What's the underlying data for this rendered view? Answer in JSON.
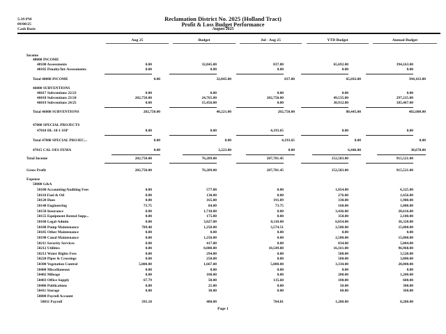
{
  "header": {
    "time": "5:39 PM",
    "date": "09/08/25",
    "basis": "Cash Basis",
    "title": "Reclamation District No. 2025 (Holland Tract)",
    "subtitle": "Profit & Loss Budget Performance",
    "period": "August 2025"
  },
  "columns": [
    "Aug 25",
    "Budget",
    "Jul - Aug 25",
    "YTD Budget",
    "Annual Budget"
  ],
  "rows": [
    {
      "label": "Income",
      "level": 0,
      "kind": "heading"
    },
    {
      "label": "48000 INCOME",
      "level": 1,
      "kind": "heading"
    },
    {
      "label": "48100 Assessments",
      "level": 2,
      "kind": "detail",
      "values": [
        "0.00",
        "32,845.00",
        "837.80",
        "65,692.00",
        "394,163.00"
      ]
    },
    {
      "label": "48105 Penalty/Int-Assessments",
      "level": 2,
      "kind": "detail",
      "values": [
        "0.00",
        "0.00",
        "0.00",
        "0.00",
        "0.00"
      ],
      "underline": true
    },
    {
      "label": "Total 48000 INCOME",
      "level": 1,
      "kind": "subtotal",
      "values": [
        "0.00",
        "32,845.00",
        "837.80",
        "65,692.00",
        "394,163.00"
      ]
    },
    {
      "label": "46000 SUBVENTIONS",
      "level": 1,
      "kind": "heading"
    },
    {
      "label": "46017 Subventions 22/23",
      "level": 2,
      "kind": "detail",
      "values": [
        "0.00",
        "0.00",
        "0.00",
        "0.00",
        "0.00"
      ]
    },
    {
      "label": "46018 Subventions 23/24",
      "level": 2,
      "kind": "detail",
      "values": [
        "202,750.00",
        "24,765.00",
        "202,750.00",
        "49,535.00",
        "297,215.00"
      ]
    },
    {
      "label": "46019 Subventions 24/25",
      "level": 2,
      "kind": "detail",
      "values": [
        "0.00",
        "15,456.00",
        "0.00",
        "30,912.00",
        "185,467.00"
      ],
      "underline": true
    },
    {
      "label": "Total 46000 SUBVENTIONS",
      "level": 1,
      "kind": "subtotal",
      "values": [
        "202,750.00",
        "40,221.00",
        "202,750.00",
        "80,445.00",
        "482,680.00"
      ]
    },
    {
      "label": "47000 SPECIAL PROJECTS",
      "level": 1,
      "kind": "heading"
    },
    {
      "label": "47010 DL-18-1 SSP",
      "level": 2,
      "kind": "detail",
      "values": [
        "0.00",
        "0.00",
        "4,193.65",
        "0.00",
        "0.00"
      ],
      "underline": true
    },
    {
      "label": "Total 47000 SPECIAL PROJEC...",
      "level": 1,
      "kind": "subtotal",
      "values": [
        "0.00",
        "0.00",
        "4,193.65",
        "0.00",
        "0.00"
      ]
    },
    {
      "label": "47015 CAL OES FEMA",
      "level": 1,
      "kind": "subtotal",
      "values": [
        "0.00",
        "3,223.00",
        "0.00",
        "6,446.00",
        "38,678.00"
      ],
      "underline": true
    },
    {
      "label": "Total Income",
      "level": 0,
      "kind": "total",
      "values": [
        "202,750.00",
        "76,289.00",
        "207,781.45",
        "152,583.00",
        "915,521.00"
      ],
      "underline": true
    },
    {
      "label": "Gross Profit",
      "level": 0,
      "kind": "total",
      "values": [
        "202,750.00",
        "76,289.00",
        "207,781.45",
        "152,583.00",
        "915,521.00"
      ]
    },
    {
      "label": "Expense",
      "level": 0,
      "kind": "heading"
    },
    {
      "label": "50000 G&A",
      "level": 1,
      "kind": "heading"
    },
    {
      "label": "50100 Accounting/Auditing Fees",
      "level": 2,
      "kind": "detail",
      "values": [
        "0.00",
        "577.00",
        "0.00",
        "1,054.00",
        "6,325.00"
      ]
    },
    {
      "label": "50110 Fuel & Oil",
      "level": 2,
      "kind": "detail",
      "values": [
        "0.00",
        "138.00",
        "0.00",
        "276.00",
        "1,656.00"
      ]
    },
    {
      "label": "50120 Dues",
      "level": 2,
      "kind": "detail",
      "values": [
        "0.00",
        "165.00",
        "191.89",
        "330.00",
        "1,980.00"
      ]
    },
    {
      "label": "50140 Engineering",
      "level": 2,
      "kind": "detail",
      "values": [
        "73.75",
        "84.00",
        "73.75",
        "168.00",
        "1,008.00"
      ]
    },
    {
      "label": "50150 Insurance",
      "level": 2,
      "kind": "detail",
      "values": [
        "0.00",
        "1,718.00",
        "0.00",
        "3,436.00",
        "20,616.00"
      ]
    },
    {
      "label": "50155 Equipment Rental Supp...",
      "level": 2,
      "kind": "detail",
      "values": [
        "0.00",
        "175.00",
        "0.00",
        "350.00",
        "2,100.00"
      ]
    },
    {
      "label": "50160 Legal-Admin",
      "level": 2,
      "kind": "detail",
      "values": [
        "0.00",
        "3,027.00",
        "8,110.00",
        "6,054.00",
        "36,320.00"
      ]
    },
    {
      "label": "50180 Pump Maintenance",
      "level": 2,
      "kind": "detail",
      "values": [
        "789.48",
        "1,250.00",
        "3,574.51",
        "2,500.00",
        "15,000.00"
      ]
    },
    {
      "label": "50185 Other Maintenance",
      "level": 2,
      "kind": "detail",
      "values": [
        "0.00",
        "0.00",
        "0.00",
        "0.00",
        "0.00"
      ]
    },
    {
      "label": "50190 Canal Maintenance",
      "level": 2,
      "kind": "detail",
      "values": [
        "0.00",
        "1,250.00",
        "0.00",
        "2,500.00",
        "15,000.00"
      ]
    },
    {
      "label": "50211 Security Services",
      "level": 2,
      "kind": "detail",
      "values": [
        "0.00",
        "417.00",
        "0.00",
        "834.00",
        "5,004.00"
      ]
    },
    {
      "label": "50212 Utilities",
      "level": 2,
      "kind": "detail",
      "values": [
        "0.00",
        "8,080.00",
        "10,549.88",
        "16,161.00",
        "96,968.00"
      ]
    },
    {
      "label": "50213 Water Rights Fees",
      "level": 2,
      "kind": "detail",
      "values": [
        "0.00",
        "294.00",
        "0.00",
        "588.00",
        "3,528.00"
      ]
    },
    {
      "label": "50220 Pipes & Crossings",
      "level": 2,
      "kind": "detail",
      "values": [
        "0.00",
        "250.00",
        "0.00",
        "500.00",
        "3,000.00"
      ]
    },
    {
      "label": "50300 Vegetation Control",
      "level": 2,
      "kind": "detail",
      "values": [
        "5,000.00",
        "1,667.00",
        "5,000.00",
        "3,334.00",
        "20,000.00"
      ]
    },
    {
      "label": "50400 Miscellaneous",
      "level": 2,
      "kind": "detail",
      "values": [
        "0.00",
        "0.00",
        "0.00",
        "0.00",
        "0.00"
      ]
    },
    {
      "label": "50402 Mileage",
      "level": 2,
      "kind": "detail",
      "values": [
        "0.00",
        "100.00",
        "0.00",
        "200.00",
        "1,200.00"
      ]
    },
    {
      "label": "50403 Office Supply",
      "level": 2,
      "kind": "detail",
      "values": [
        "67.79",
        "50.00",
        "135.60",
        "100.00",
        "600.00"
      ]
    },
    {
      "label": "50406 Publications",
      "level": 2,
      "kind": "detail",
      "values": [
        "0.00",
        "25.00",
        "0.00",
        "50.00",
        "300.00"
      ]
    },
    {
      "label": "50411 Storage",
      "level": 2,
      "kind": "detail",
      "values": [
        "0.00",
        "30.00",
        "0.00",
        "60.00",
        "360.00"
      ]
    },
    {
      "label": "50800 Payroll Account",
      "level": 2,
      "kind": "heading"
    },
    {
      "label": "50811 Payroll",
      "level": 3,
      "kind": "detail3",
      "values": [
        "395.18",
        "480.00",
        "704.81",
        "1,280.00",
        "8,280.00"
      ]
    }
  ],
  "footer": {
    "page": "Page 1"
  }
}
